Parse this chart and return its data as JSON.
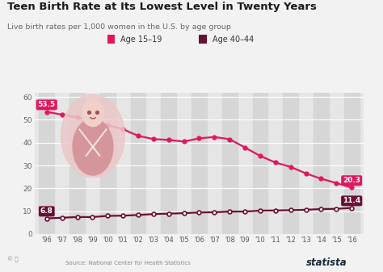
{
  "title": "Teen Birth Rate at Its Lowest Level in Twenty Years",
  "subtitle": "Live birth rates per 1,000 women in the U.S. by age group",
  "source": "Source: National Center for Health Statistics",
  "years": [
    1996,
    1997,
    1998,
    1999,
    2000,
    2001,
    2002,
    2003,
    2004,
    2005,
    2006,
    2007,
    2008,
    2009,
    2010,
    2011,
    2012,
    2013,
    2014,
    2015,
    2016
  ],
  "year_labels": [
    "'96",
    "'97",
    "'98",
    "'99",
    "'00",
    "'01",
    "'02",
    "'03",
    "'04",
    "'05",
    "'06",
    "'07",
    "'08",
    "'09",
    "'10",
    "'11",
    "'12",
    "'13",
    "'14",
    "'15",
    "'16"
  ],
  "age_15_19": [
    53.5,
    52.3,
    51.1,
    49.6,
    47.7,
    45.9,
    43.0,
    41.6,
    41.2,
    40.5,
    41.9,
    42.5,
    41.5,
    37.9,
    34.2,
    31.3,
    29.4,
    26.5,
    24.2,
    22.3,
    20.3
  ],
  "age_40_44": [
    6.8,
    7.1,
    7.4,
    7.4,
    7.9,
    8.0,
    8.3,
    8.7,
    8.9,
    9.1,
    9.4,
    9.5,
    9.8,
    9.8,
    10.2,
    10.3,
    10.4,
    10.6,
    10.9,
    11.0,
    11.4
  ],
  "color_15_19": "#e0175f",
  "color_40_44": "#6b0f35",
  "label_start_15_19": "53.5",
  "label_end_15_19": "20.3",
  "label_start_40_44": "6.8",
  "label_end_40_44": "11.4",
  "bg_color": "#f2f2f2",
  "plot_bg_color": "#e6e6e6",
  "stripe_color": "#d6d6d6",
  "ylim": [
    0,
    62
  ],
  "yticks": [
    0,
    10,
    20,
    30,
    40,
    50,
    60
  ],
  "baby_color": "#d4969a",
  "baby_bg_color": "#ecc8c8"
}
